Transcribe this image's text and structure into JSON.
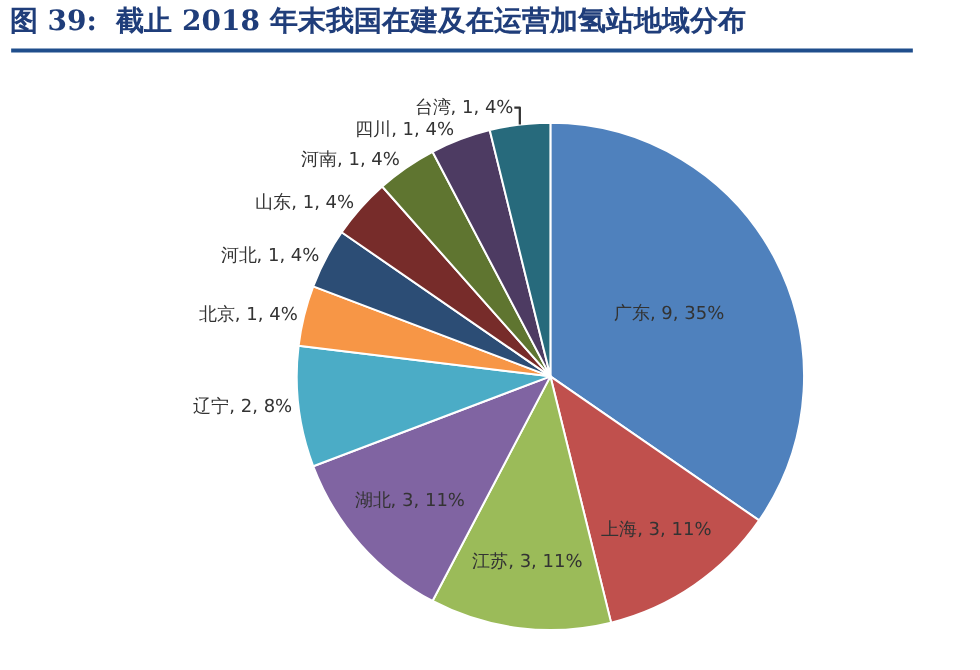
{
  "chart_data": {
    "type": "pie",
    "title": "图 39:  截止 2018 年末我国在建及在运营加氢站地域分布",
    "categories": [
      "广东",
      "上海",
      "江苏",
      "湖北",
      "辽宁",
      "北京",
      "河北",
      "山东",
      "河南",
      "四川",
      "台湾"
    ],
    "values": [
      9,
      3,
      3,
      3,
      2,
      1,
      1,
      1,
      1,
      1,
      1
    ],
    "value_labels": [
      "9, 35%",
      "3, 11%",
      "3, 11%",
      "3, 11%",
      "2, 8%",
      "1, 4%",
      "1, 4%",
      "1, 4%",
      "1, 4%",
      "1, 4%",
      "1, 4%"
    ],
    "colors": [
      "#4f81bd",
      "#c0504d",
      "#9bbb59",
      "#8064a2",
      "#4bacc6",
      "#f79646",
      "#2c4d75",
      "#772c2a",
      "#5f7530",
      "#4d3b62",
      "#276a7c"
    ],
    "legend": false
  }
}
